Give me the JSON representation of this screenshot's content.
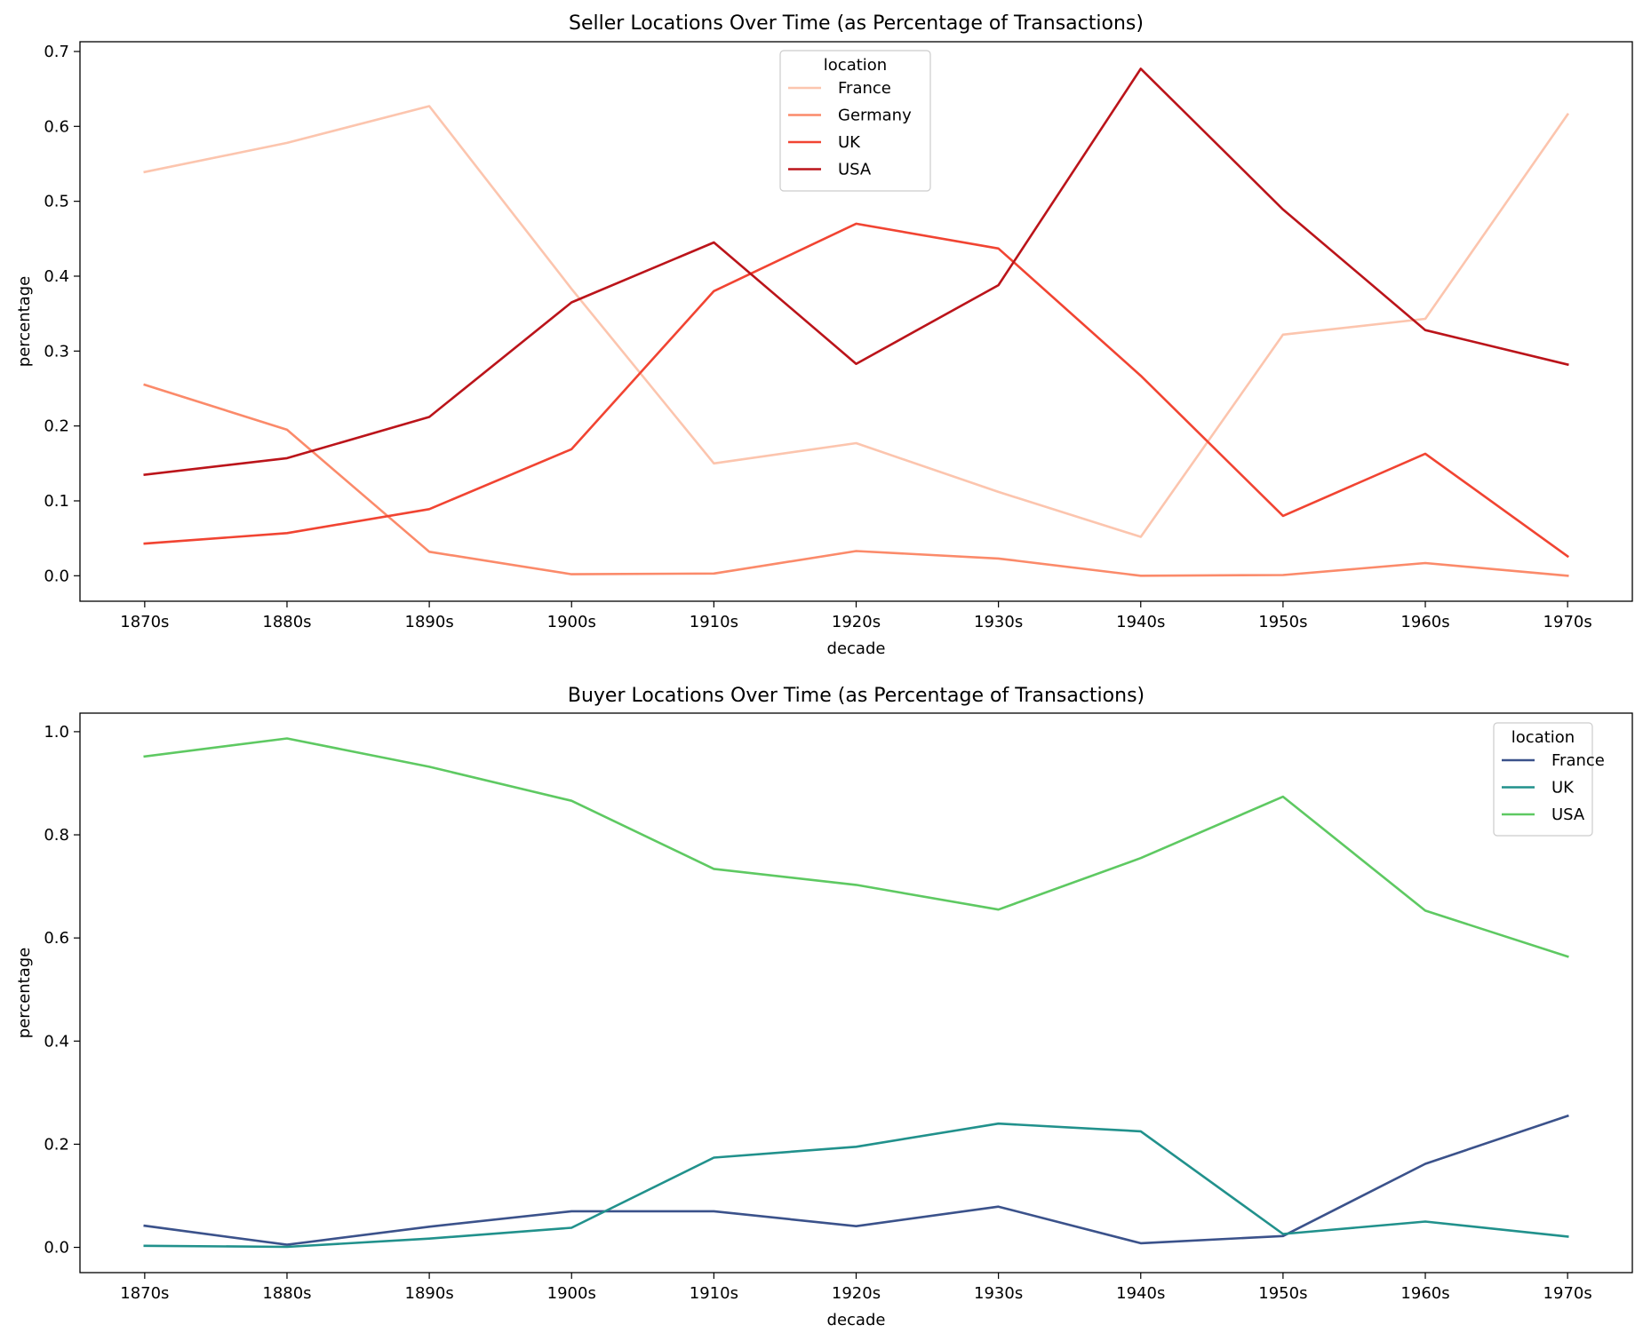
{
  "chart_data": [
    {
      "type": "line",
      "title": "Seller Locations Over Time (as Percentage of Transactions)",
      "xlabel": "decade",
      "ylabel": "percentage",
      "categories": [
        "1870s",
        "1880s",
        "1890s",
        "1900s",
        "1910s",
        "1920s",
        "1930s",
        "1940s",
        "1950s",
        "1960s",
        "1970s"
      ],
      "ylim": [
        -0.034,
        0.713
      ],
      "yticks": [
        "0.0",
        "0.1",
        "0.2",
        "0.3",
        "0.4",
        "0.5",
        "0.6",
        "0.7"
      ],
      "grid": false,
      "legend": {
        "title": "location",
        "placement": "upper-center"
      },
      "series": [
        {
          "name": "France",
          "color": "#fcc5ae",
          "values": [
            0.539,
            0.578,
            0.627,
            0.383,
            0.15,
            0.177,
            0.112,
            0.052,
            0.322,
            0.343,
            0.616
          ]
        },
        {
          "name": "Germany",
          "color": "#fb8a6a",
          "values": [
            0.255,
            0.195,
            0.032,
            0.002,
            0.003,
            0.033,
            0.023,
            0.0,
            0.001,
            0.017,
            0.0
          ]
        },
        {
          "name": "UK",
          "color": "#f14432",
          "values": [
            0.043,
            0.057,
            0.089,
            0.169,
            0.38,
            0.47,
            0.437,
            0.267,
            0.08,
            0.163,
            0.026
          ]
        },
        {
          "name": "USA",
          "color": "#bb141a",
          "values": [
            0.135,
            0.157,
            0.212,
            0.365,
            0.445,
            0.283,
            0.388,
            0.677,
            0.489,
            0.328,
            0.282
          ]
        }
      ]
    },
    {
      "type": "line",
      "title": "Buyer Locations Over Time (as Percentage of Transactions)",
      "xlabel": "decade",
      "ylabel": "percentage",
      "categories": [
        "1870s",
        "1880s",
        "1890s",
        "1900s",
        "1910s",
        "1920s",
        "1930s",
        "1940s",
        "1950s",
        "1960s",
        "1970s"
      ],
      "ylim": [
        -0.049,
        1.036
      ],
      "yticks": [
        "0.0",
        "0.2",
        "0.4",
        "0.6",
        "0.8",
        "1.0"
      ],
      "grid": false,
      "legend": {
        "title": "location",
        "placement": "upper-right"
      },
      "series": [
        {
          "name": "France",
          "color": "#3b528b",
          "values": [
            0.042,
            0.005,
            0.04,
            0.07,
            0.07,
            0.041,
            0.079,
            0.008,
            0.022,
            0.162,
            0.255
          ]
        },
        {
          "name": "UK",
          "color": "#21918c",
          "values": [
            0.003,
            0.001,
            0.017,
            0.038,
            0.174,
            0.195,
            0.24,
            0.225,
            0.026,
            0.05,
            0.021
          ]
        },
        {
          "name": "USA",
          "color": "#5ec962",
          "values": [
            0.952,
            0.987,
            0.932,
            0.866,
            0.734,
            0.703,
            0.655,
            0.755,
            0.874,
            0.653,
            0.564
          ]
        }
      ]
    }
  ]
}
